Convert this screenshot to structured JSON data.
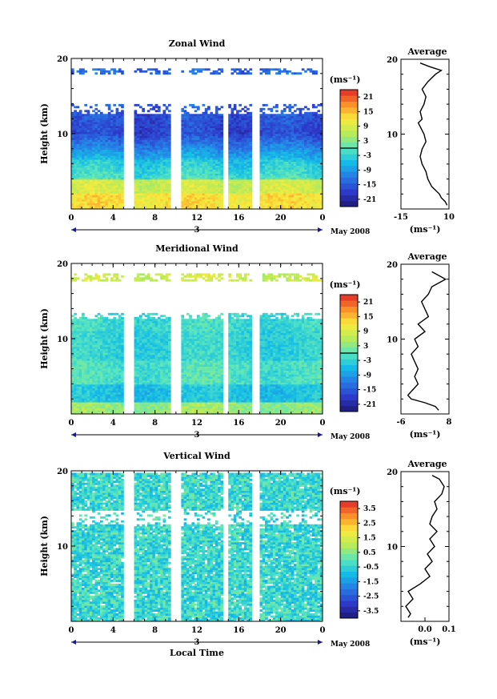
{
  "chart_data": [
    {
      "type": "heatmap",
      "title": "Zonal Wind",
      "ylabel": "Height (km)",
      "ylim": [
        0,
        20
      ],
      "y_ticks": [
        "20",
        "10"
      ],
      "xlim": [
        0,
        24
      ],
      "x_ticks": [
        "0",
        "4",
        "8",
        "12",
        "16",
        "20",
        "0"
      ],
      "date_label": "3",
      "month_label": "May 2008",
      "colorbar": {
        "unit_label": "(ms⁻¹)",
        "tick_labels": [
          "21",
          "15",
          "9",
          "3",
          "-3",
          "-9",
          "-15",
          "-21"
        ],
        "range": [
          -24,
          24
        ],
        "zero_line": 0
      },
      "data_gaps_local_time": [
        [
          5.2,
          5.8
        ],
        [
          9.6,
          10.3
        ],
        [
          14.5,
          14.9
        ],
        [
          17.3,
          17.9
        ]
      ],
      "profile": {
        "title": "Average",
        "xlabel": "(ms⁻¹)",
        "xlim": [
          -15,
          10
        ],
        "x_ticks": [
          "-15",
          "10"
        ],
        "y_ticks": [
          "20",
          "10"
        ],
        "height_km": [
          0.5,
          1,
          1.5,
          2,
          2.5,
          3,
          4,
          5,
          6,
          7,
          8,
          9,
          10,
          11,
          11.5,
          12,
          13,
          14,
          15,
          16,
          17,
          18,
          18.5,
          19,
          19.5
        ],
        "values": [
          9,
          8,
          6,
          5,
          3,
          1,
          -1,
          -2,
          -4,
          -5,
          -4,
          -2,
          -3,
          -5,
          -6,
          -4,
          -5,
          -3,
          -2,
          -4,
          -1,
          3,
          6,
          0,
          -5
        ]
      }
    },
    {
      "type": "heatmap",
      "title": "Meridional Wind",
      "ylabel": "Height (km)",
      "ylim": [
        0,
        20
      ],
      "y_ticks": [
        "20",
        "10"
      ],
      "xlim": [
        0,
        24
      ],
      "x_ticks": [
        "0",
        "4",
        "8",
        "12",
        "16",
        "20",
        "0"
      ],
      "date_label": "3",
      "month_label": "May 2008",
      "colorbar": {
        "unit_label": "(ms⁻¹)",
        "tick_labels": [
          "21",
          "15",
          "9",
          "3",
          "-3",
          "-9",
          "-15",
          "-21"
        ],
        "range": [
          -24,
          24
        ],
        "zero_line": 0
      },
      "data_gaps_local_time": [
        [
          5.2,
          5.8
        ],
        [
          9.6,
          10.3
        ],
        [
          14.5,
          14.9
        ],
        [
          17.3,
          17.9
        ]
      ],
      "profile": {
        "title": "Average",
        "xlabel": "(ms⁻¹)",
        "xlim": [
          -6,
          8
        ],
        "x_ticks": [
          "-6",
          "8"
        ],
        "y_ticks": [
          "20",
          "10"
        ],
        "height_km": [
          0.5,
          1,
          1.5,
          2,
          2.5,
          3,
          4,
          5,
          6,
          7,
          8,
          9,
          10,
          11,
          12,
          13,
          14,
          15,
          16,
          17,
          18,
          18.5,
          19
        ],
        "values": [
          5,
          4,
          1,
          -3,
          -4,
          -3,
          -1,
          -2,
          -1,
          -2,
          -3,
          -1,
          -2,
          1,
          -1,
          2,
          1,
          0,
          2,
          3,
          7,
          5,
          3
        ]
      }
    },
    {
      "type": "heatmap",
      "title": "Vertical Wind",
      "ylabel": "Height (km)",
      "xlabel": "Local Time",
      "ylim": [
        0,
        20
      ],
      "y_ticks": [
        "20",
        "10"
      ],
      "xlim": [
        0,
        24
      ],
      "x_ticks": [
        "0",
        "4",
        "8",
        "12",
        "16",
        "20",
        "0"
      ],
      "date_label": "3",
      "month_label": "May 2008",
      "colorbar": {
        "unit_label": "(ms⁻¹)",
        "tick_labels": [
          "3.5",
          "2.5",
          "1.5",
          "0.5",
          "-0.5",
          "-1.5",
          "-2.5",
          "-3.5"
        ],
        "range": [
          -4,
          4
        ]
      },
      "data_gaps_local_time": [
        [
          5.2,
          5.8
        ],
        [
          9.6,
          10.3
        ],
        [
          14.5,
          14.9
        ],
        [
          17.3,
          17.9
        ]
      ],
      "profile": {
        "title": "Average",
        "xlabel": "(ms⁻¹)",
        "xlim": [
          -0.1,
          0.1
        ],
        "x_ticks": [
          "0.0",
          "0.1"
        ],
        "y_ticks": [
          "20",
          "10"
        ],
        "height_km": [
          0.5,
          1,
          2,
          3,
          4,
          5,
          6,
          7,
          8,
          9,
          10,
          11,
          12,
          13,
          14,
          15,
          16,
          17,
          18,
          19,
          19.5
        ],
        "values": [
          -0.07,
          -0.06,
          -0.08,
          -0.05,
          -0.07,
          -0.02,
          0.02,
          0.0,
          0.03,
          0.01,
          0.04,
          0.02,
          0.05,
          0.02,
          0.03,
          0.05,
          0.04,
          0.07,
          0.08,
          0.06,
          0.03
        ]
      }
    }
  ]
}
